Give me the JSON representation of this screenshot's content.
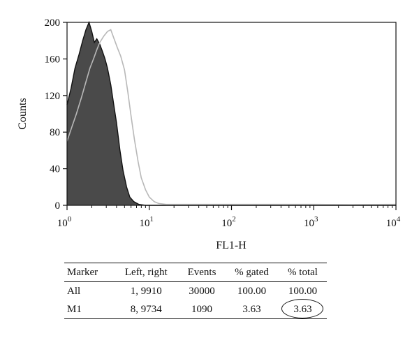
{
  "chart_data": {
    "type": "area",
    "xlabel": "FL1-H",
    "ylabel": "Counts",
    "xscale": "log",
    "xlim": [
      1,
      10000
    ],
    "ylim": [
      0,
      200
    ],
    "yticks": [
      0,
      40,
      80,
      120,
      160,
      200
    ],
    "xticks": [
      {
        "base": "10",
        "exp": "0"
      },
      {
        "base": "10",
        "exp": "1"
      },
      {
        "base": "10",
        "exp": "2"
      },
      {
        "base": "10",
        "exp": "3"
      },
      {
        "base": "10",
        "exp": "4"
      }
    ],
    "series": [
      {
        "style": "filled dark gray with black outline",
        "color": "#4a4a4a",
        "points": [
          [
            1,
            110
          ],
          [
            1.12,
            128
          ],
          [
            1.25,
            150
          ],
          [
            1.4,
            165
          ],
          [
            1.55,
            180
          ],
          [
            1.7,
            192
          ],
          [
            1.85,
            200
          ],
          [
            2.0,
            190
          ],
          [
            2.15,
            178
          ],
          [
            2.3,
            182
          ],
          [
            2.5,
            176
          ],
          [
            2.7,
            168
          ],
          [
            2.9,
            160
          ],
          [
            3.1,
            150
          ],
          [
            3.4,
            132
          ],
          [
            3.7,
            110
          ],
          [
            4.0,
            90
          ],
          [
            4.4,
            60
          ],
          [
            4.8,
            38
          ],
          [
            5.3,
            20
          ],
          [
            5.8,
            9
          ],
          [
            6.5,
            4
          ],
          [
            7.5,
            1
          ],
          [
            9,
            0
          ],
          [
            10000,
            0
          ]
        ]
      },
      {
        "style": "light gray outline",
        "color": "#b8b8b8",
        "points": [
          [
            1,
            70
          ],
          [
            1.15,
            86
          ],
          [
            1.3,
            100
          ],
          [
            1.5,
            118
          ],
          [
            1.7,
            135
          ],
          [
            1.9,
            150
          ],
          [
            2.1,
            160
          ],
          [
            2.3,
            170
          ],
          [
            2.5,
            178
          ],
          [
            2.8,
            185
          ],
          [
            3.1,
            190
          ],
          [
            3.4,
            192
          ],
          [
            3.7,
            183
          ],
          [
            4.1,
            172
          ],
          [
            4.5,
            163
          ],
          [
            5.0,
            148
          ],
          [
            5.5,
            123
          ],
          [
            6.0,
            98
          ],
          [
            6.6,
            72
          ],
          [
            7.3,
            48
          ],
          [
            8.0,
            30
          ],
          [
            9.0,
            17
          ],
          [
            10.0,
            9
          ],
          [
            11.5,
            4
          ],
          [
            13,
            2
          ],
          [
            16,
            1
          ],
          [
            25,
            1
          ],
          [
            100,
            1
          ],
          [
            1000,
            1
          ],
          [
            3000,
            0.8
          ],
          [
            10000,
            1
          ]
        ]
      }
    ]
  },
  "table": {
    "headers": [
      "Marker",
      "Left, right",
      "Events",
      "% gated",
      "% total"
    ],
    "rows": [
      [
        "All",
        "1, 9910",
        "30000",
        "100.00",
        "100.00"
      ],
      [
        "M1",
        "8, 9734",
        "1090",
        "3.63",
        "3.63"
      ]
    ]
  }
}
